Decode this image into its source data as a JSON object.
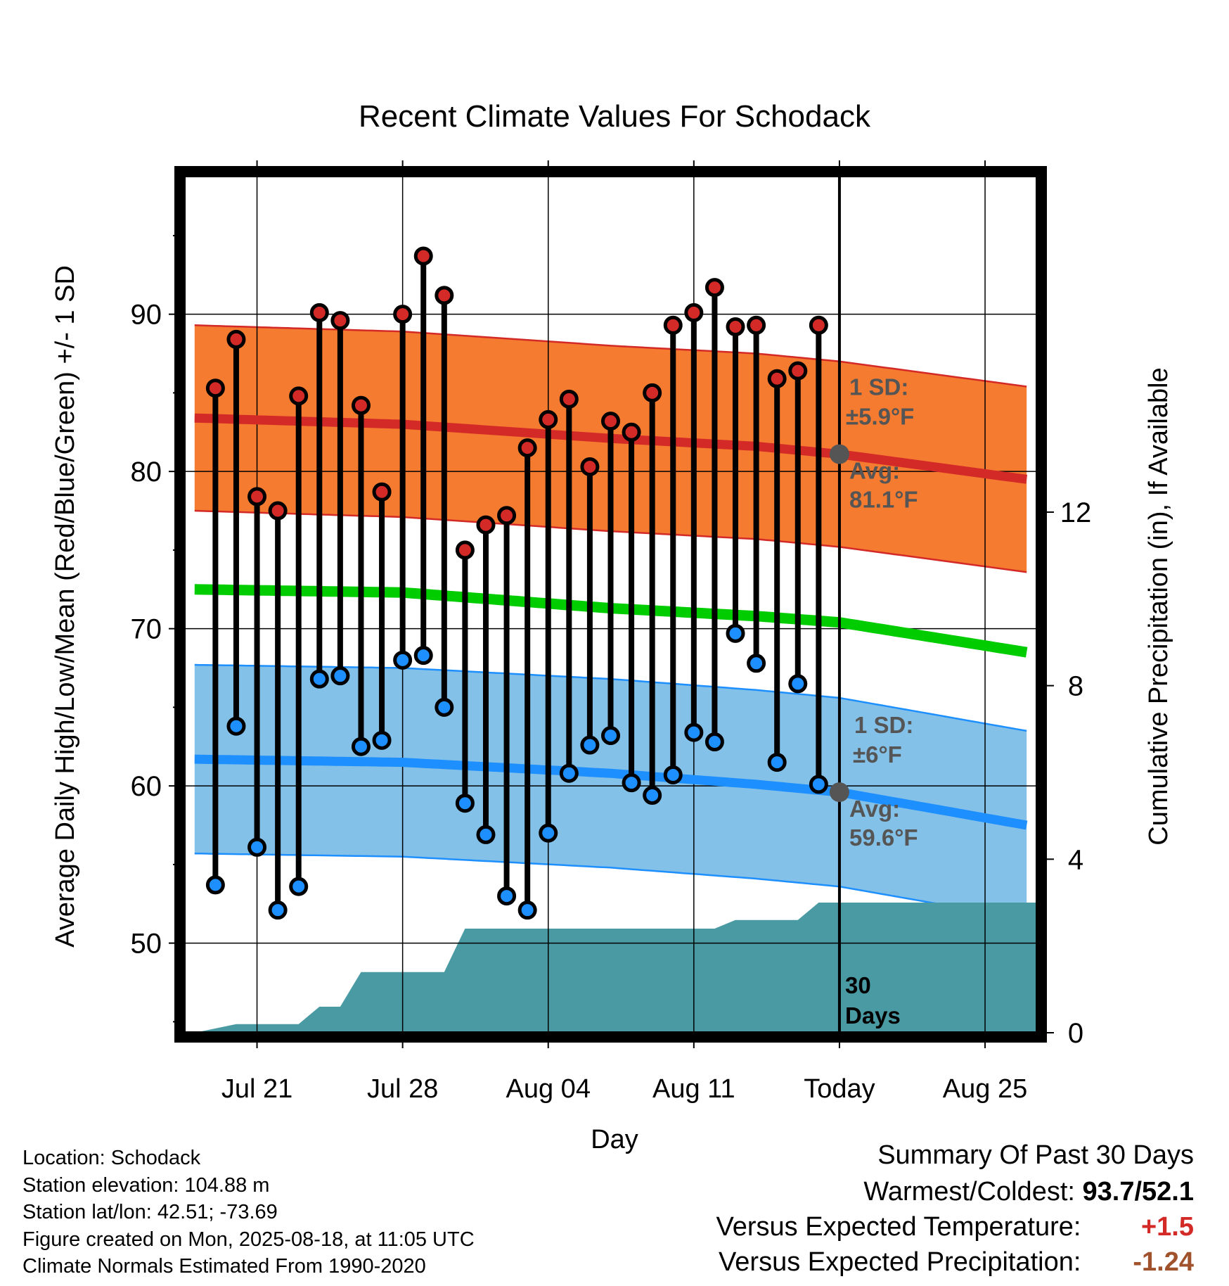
{
  "chart_data": {
    "type": "line",
    "title": "Recent Climate Values For Schodack",
    "xlabel": "Day",
    "ylabel": "Average Daily High/Low/Mean (Red/Blue/Green) +/- 1 SD",
    "y2label": "Cumulative Precipitation (in), If Available",
    "ylim": [
      44.3,
      98.8
    ],
    "y2lim": [
      0,
      19.75
    ],
    "yticks": [
      50,
      60,
      70,
      80,
      90
    ],
    "y2ticks": [
      0,
      4,
      8,
      12
    ],
    "xlim": [
      -31.5,
      9.5
    ],
    "xtick_positions": [
      -28,
      -21,
      -14,
      -7,
      0,
      7
    ],
    "xtick_labels": [
      "Jul 21",
      "Jul 28",
      "Aug 04",
      "Aug 11",
      "Today",
      "Aug 25"
    ],
    "colors": {
      "high_band": "#f47b30",
      "high_line": "#d42a27",
      "low_band": "#84c1e8",
      "low_line": "#1e8fff",
      "mean_line": "#00cc00",
      "precip": "#4a9aa4",
      "high_dot": "#d42a27",
      "low_dot": "#1e8fff",
      "marker": "#555555"
    },
    "days": [
      -30,
      -29,
      -28,
      -27,
      -26,
      -25,
      -24,
      -23,
      -22,
      -21,
      -20,
      -19,
      -18,
      -17,
      -16,
      -15,
      -14,
      -13,
      -12,
      -11,
      -10,
      -9,
      -8,
      -7,
      -6,
      -5,
      -4,
      -3,
      -2,
      -1
    ],
    "highs": [
      85.3,
      88.4,
      78.4,
      77.5,
      84.8,
      90.1,
      89.6,
      84.2,
      78.7,
      90.0,
      93.7,
      91.2,
      75.0,
      76.6,
      77.2,
      81.5,
      83.3,
      84.6,
      80.3,
      83.2,
      82.5,
      85.0,
      89.3,
      90.1,
      91.7,
      89.2,
      89.3,
      85.9,
      86.4,
      89.3
    ],
    "lows": [
      53.7,
      63.8,
      56.1,
      52.1,
      53.6,
      66.8,
      67.0,
      62.5,
      62.9,
      68.0,
      68.3,
      65.0,
      58.9,
      56.9,
      53.0,
      52.1,
      57.0,
      60.8,
      62.6,
      63.2,
      60.2,
      59.4,
      60.7,
      63.4,
      62.8,
      69.7,
      67.8,
      61.5,
      66.5,
      60.1
    ],
    "normals": {
      "x": [
        -31,
        -21,
        -11,
        -4,
        0,
        9
      ],
      "high_avg": [
        83.4,
        83.0,
        82.1,
        81.6,
        81.1,
        79.5
      ],
      "low_avg": [
        61.7,
        61.5,
        60.8,
        60.1,
        59.6,
        57.5
      ],
      "mean_avg": [
        72.5,
        72.3,
        71.3,
        70.8,
        70.4,
        68.5
      ],
      "high_sd": 5.9,
      "low_sd": 6.0
    },
    "precip": {
      "x": [
        -31,
        -29,
        -26,
        -25,
        -24,
        -23,
        -22,
        -21,
        -19,
        -18,
        -17,
        -6,
        -5,
        -2,
        -1,
        9.5
      ],
      "y": [
        0,
        0.2,
        0.2,
        0.6,
        0.6,
        1.4,
        1.4,
        1.4,
        1.4,
        2.4,
        2.4,
        2.4,
        2.6,
        2.6,
        3.0,
        3.0
      ]
    },
    "annotations": {
      "high_sd_line1": "1 SD:",
      "high_sd_line2": "±5.9°F",
      "high_avg_line1": "Avg:",
      "high_avg_line2": "81.1°F",
      "low_sd_line1": "1 SD:",
      "low_sd_line2": "±6°F",
      "low_avg_line1": "Avg:",
      "low_avg_line2": "59.6°F",
      "days_line1": "30",
      "days_line2": "Days"
    }
  },
  "info": {
    "location": "Location: Schodack",
    "elevation": "Station elevation: 104.88 m",
    "latlon": "Station lat/lon: 42.51; -73.69",
    "created": "Figure created on Mon, 2025-08-18, at 11:05 UTC",
    "normals": "Climate Normals Estimated From 1990-2020"
  },
  "summary": {
    "heading": "Summary Of Past 30 Days",
    "warmest_label": "Warmest/Coldest:",
    "warmest_value": "93.7/52.1",
    "temp_label": "Versus Expected Temperature:",
    "temp_value": "+1.5",
    "temp_color": "#d42a27",
    "precip_label": "Versus Expected Precipitation:",
    "precip_value": "-1.24",
    "precip_color": "#a0522d"
  }
}
